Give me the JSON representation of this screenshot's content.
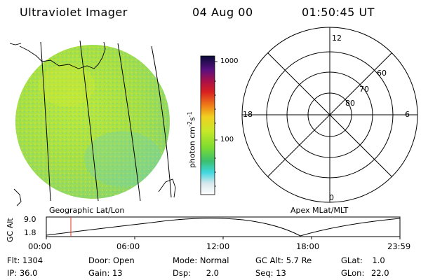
{
  "header": {
    "title": "Ultraviolet Imager",
    "date": "04 Aug 00",
    "time": "01:50:45 UT"
  },
  "colorbar": {
    "tick_labels": [
      "1000",
      "100"
    ],
    "unit_label": "photon cm",
    "unit_exp1": "-2",
    "unit_s": "s",
    "unit_exp2": "-1"
  },
  "polar_plot": {
    "mlt_labels": [
      "12",
      "18",
      "6",
      "0"
    ],
    "mlat_labels": [
      "60",
      "70",
      "80"
    ]
  },
  "map_captions": {
    "left": "Geographic Lat/Lon",
    "right": "Apex MLat/MLT"
  },
  "altitude_strip": {
    "axis_label": "GC Alt",
    "ticks": [
      "9.0",
      "1.8"
    ],
    "time_labels": [
      "00:00",
      "06:00",
      "12:00",
      "18:00",
      "23:59"
    ]
  },
  "footer": {
    "row1": [
      {
        "label": "Flt:",
        "value": "1304"
      },
      {
        "label": "Door:",
        "value": "Open"
      },
      {
        "label": "Mode:",
        "value": "Normal"
      },
      {
        "label": "GC Alt:",
        "value": "5.7 Re"
      },
      {
        "label": "GLat:",
        "value": "1.0"
      }
    ],
    "row2": [
      {
        "label": "IP:",
        "value": "36.0"
      },
      {
        "label": "Gain:",
        "value": "13"
      },
      {
        "label": "Dsp:",
        "value": "2.0"
      },
      {
        "label": "Seq:",
        "value": "13"
      },
      {
        "label": "GLon:",
        "value": "22.0"
      }
    ]
  },
  "colors": {
    "disk_base": "#a8e23c",
    "cursor": "#e0302a"
  }
}
